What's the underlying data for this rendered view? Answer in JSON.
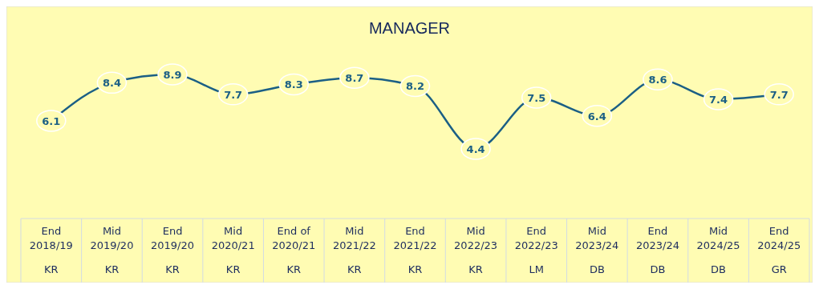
{
  "chart_data": {
    "type": "line",
    "title": "MANAGER",
    "categories": [
      "End\n2018/19\nKR",
      "Mid\n2019/20\nKR",
      "End\n2019/20\nKR",
      "Mid\n2020/21\nKR",
      "End of\n2020/21\nKR",
      "Mid\n2021/22\nKR",
      "End\n2021/22\nKR",
      "Mid\n2022/23\nKR",
      "End\n2022/23\nLM",
      "Mid\n2023/24\nDB",
      "End\n2023/24\nDB",
      "Mid\n2024/25\nDB",
      "End\n2024/25\nGR"
    ],
    "series": [
      {
        "color": "#1b5f85",
        "values": [
          6.1,
          8.4,
          8.9,
          7.7,
          8.3,
          8.7,
          8.2,
          4.4,
          7.5,
          6.4,
          8.6,
          7.4,
          7.7
        ]
      }
    ],
    "data_labels": true,
    "grid": false,
    "marker": "circle",
    "line_style": "solid"
  }
}
